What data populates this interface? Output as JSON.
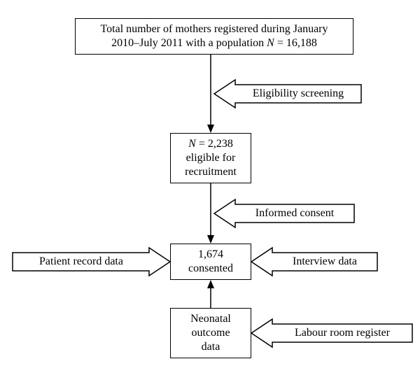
{
  "meta": {
    "type": "flowchart",
    "background_color": "#ffffff",
    "stroke_color": "#000000",
    "stroke_width": 1.5,
    "font_family": "Times New Roman, serif"
  },
  "boxes": {
    "top": {
      "text_html": "Total number of mothers registered during January<br>2010–July 2011 with a population <span class='italicN'>N</span> = 16,188",
      "fontsize": 16
    },
    "eligible": {
      "text_html": "<span class='italicN'>N</span> = 2,238<br>eligible for<br>recruitment",
      "fontsize": 16
    },
    "consented": {
      "text_html": "1,674<br>consented",
      "fontsize": 16
    },
    "neonatal": {
      "text_html": "Neonatal<br>outcome<br>data",
      "fontsize": 16
    }
  },
  "labels": {
    "elig_screen": {
      "text": "Eligibility screening",
      "fontsize": 16
    },
    "informed": {
      "text": "Informed consent",
      "fontsize": 16
    },
    "patient": {
      "text": "Patient record data",
      "fontsize": 16
    },
    "interview": {
      "text": "Interview data",
      "fontsize": 16
    },
    "labour": {
      "text": "Labour room register",
      "fontsize": 16
    }
  }
}
